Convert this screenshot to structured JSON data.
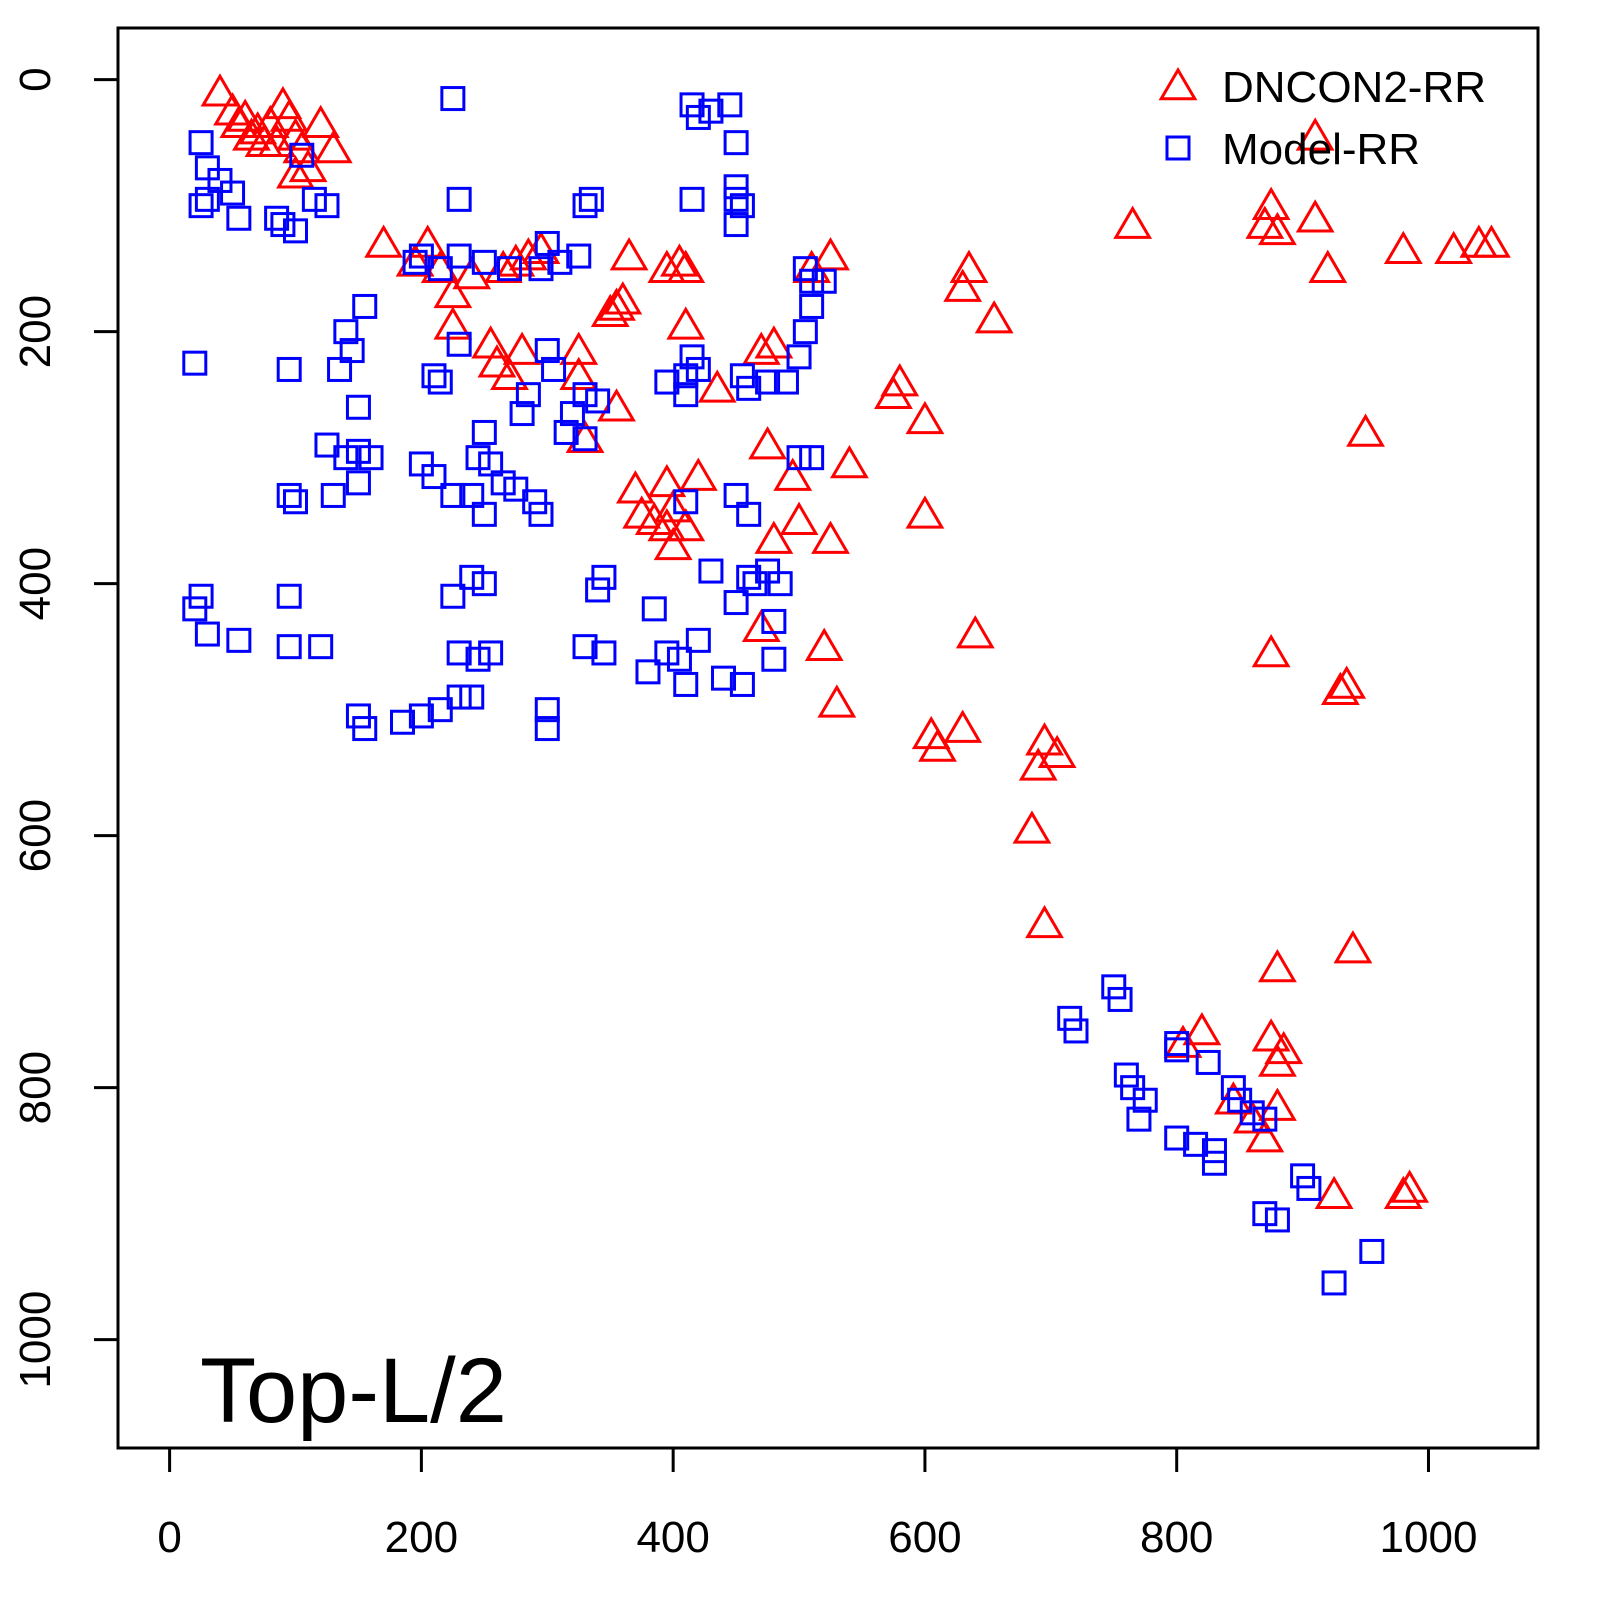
{
  "chart_data": {
    "type": "scatter",
    "annotation": "Top-L/2",
    "xlim": [
      -41,
      1087
    ],
    "ylim": [
      -41,
      1086
    ],
    "y_reversed": true,
    "xticks": [
      0,
      200,
      400,
      600,
      800,
      1000
    ],
    "yticks": [
      0,
      200,
      400,
      600,
      800,
      1000
    ],
    "legend": "top-right",
    "series": [
      {
        "name": "DNCON2-RR",
        "color": "#ff0000",
        "marker": "triangle",
        "x": [
          40,
          50,
          60,
          70,
          80,
          90,
          95,
          100,
          85,
          75,
          105,
          110,
          100,
          120,
          130,
          65,
          55,
          170,
          195,
          205,
          215,
          225,
          240,
          225,
          260,
          255,
          270,
          280,
          265,
          275,
          285,
          295,
          325,
          325,
          330,
          355,
          360,
          355,
          350,
          365,
          395,
          405,
          410,
          410,
          435,
          480,
          470,
          475,
          370,
          375,
          385,
          395,
          400,
          410,
          395,
          420,
          400,
          480,
          495,
          500,
          525,
          540,
          470,
          520,
          530,
          525,
          510,
          600,
          600,
          580,
          575,
          635,
          630,
          655,
          630,
          605,
          610,
          640,
          695,
          705,
          690,
          685,
          695,
          765,
          870,
          875,
          880,
          910,
          920,
          910,
          980,
          1020,
          1040,
          1050,
          950,
          875,
          930,
          935,
          940,
          880,
          875,
          885,
          880,
          820,
          805,
          880,
          870,
          845,
          860,
          925,
          985,
          980
        ],
        "values": [
          10,
          25,
          30,
          40,
          35,
          20,
          30,
          45,
          50,
          50,
          55,
          70,
          75,
          35,
          55,
          45,
          35,
          130,
          145,
          130,
          150,
          170,
          155,
          195,
          225,
          210,
          235,
          215,
          150,
          145,
          140,
          135,
          215,
          235,
          285,
          260,
          175,
          180,
          185,
          140,
          150,
          145,
          150,
          195,
          245,
          210,
          215,
          290,
          325,
          345,
          350,
          355,
          340,
          355,
          320,
          315,
          370,
          365,
          315,
          350,
          365,
          305,
          435,
          450,
          495,
          140,
          150,
          270,
          345,
          240,
          250,
          150,
          165,
          190,
          515,
          520,
          530,
          440,
          525,
          535,
          545,
          595,
          670,
          115,
          115,
          100,
          120,
          110,
          150,
          45,
          135,
          135,
          130,
          130,
          280,
          455,
          485,
          480,
          690,
          705,
          760,
          770,
          780,
          755,
          765,
          815,
          840,
          810,
          825,
          885,
          880,
          885
        ]
      },
      {
        "name": "Model-RR",
        "color": "#0000ff",
        "marker": "square",
        "x": [
          25,
          30,
          40,
          50,
          30,
          25,
          55,
          85,
          90,
          100,
          115,
          125,
          105,
          20,
          95,
          140,
          145,
          135,
          150,
          155,
          195,
          200,
          215,
          230,
          230,
          210,
          215,
          225,
          230,
          250,
          270,
          295,
          300,
          310,
          325,
          330,
          335,
          330,
          340,
          300,
          305,
          285,
          280,
          320,
          315,
          330,
          250,
          245,
          255,
          240,
          250,
          265,
          275,
          290,
          295,
          200,
          210,
          225,
          150,
          140,
          160,
          125,
          130,
          150,
          95,
          100,
          20,
          25,
          30,
          55,
          95,
          95,
          120,
          150,
          155,
          185,
          200,
          215,
          230,
          240,
          300,
          300,
          225,
          230,
          245,
          255,
          240,
          250,
          340,
          345,
          330,
          345,
          385,
          380,
          395,
          405,
          410,
          420,
          430,
          440,
          455,
          450,
          460,
          465,
          475,
          480,
          485,
          480,
          395,
          410,
          420,
          410,
          415,
          455,
          460,
          475,
          490,
          500,
          505,
          510,
          510,
          505,
          520,
          500,
          510,
          450,
          460,
          410,
          415,
          415,
          420,
          430,
          445,
          450,
          450,
          450,
          455,
          450,
          750,
          755,
          715,
          720,
          760,
          765,
          775,
          770,
          800,
          800,
          825,
          800,
          815,
          830,
          830,
          845,
          850,
          860,
          870,
          900,
          905,
          870,
          880,
          925,
          955
        ],
        "values": [
          50,
          70,
          80,
          90,
          95,
          100,
          110,
          110,
          115,
          120,
          95,
          100,
          60,
          225,
          230,
          200,
          215,
          230,
          260,
          180,
          145,
          140,
          150,
          140,
          210,
          235,
          240,
          15,
          95,
          145,
          150,
          150,
          130,
          145,
          140,
          100,
          95,
          250,
          255,
          215,
          230,
          250,
          265,
          265,
          280,
          285,
          280,
          300,
          305,
          330,
          345,
          320,
          325,
          335,
          345,
          305,
          315,
          330,
          295,
          300,
          300,
          290,
          330,
          320,
          330,
          335,
          420,
          410,
          440,
          445,
          410,
          450,
          450,
          505,
          515,
          510,
          505,
          500,
          490,
          490,
          500,
          515,
          410,
          455,
          460,
          455,
          395,
          400,
          405,
          395,
          450,
          455,
          420,
          470,
          455,
          460,
          480,
          445,
          390,
          475,
          480,
          415,
          395,
          400,
          390,
          430,
          400,
          460,
          240,
          235,
          230,
          250,
          220,
          235,
          245,
          240,
          240,
          220,
          200,
          180,
          160,
          150,
          160,
          300,
          300,
          330,
          345,
          335,
          95,
          20,
          30,
          25,
          20,
          50,
          95,
          115,
          100,
          85,
          720,
          730,
          745,
          755,
          790,
          800,
          810,
          825,
          765,
          770,
          780,
          840,
          845,
          850,
          860,
          800,
          810,
          820,
          825,
          870,
          880,
          900,
          905,
          955,
          930
        ]
      }
    ]
  }
}
